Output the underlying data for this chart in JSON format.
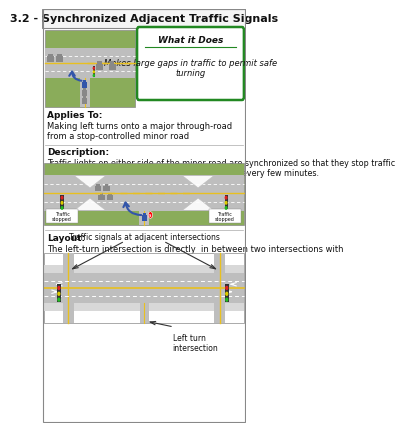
{
  "title": "3.2 - Synchronized Adjacent Traffic Signals",
  "what_it_does_title": "What it Does",
  "what_it_does_body": "Makes large gaps in traffic to permit safe\nturning",
  "applies_to_label": "Applies To:",
  "applies_to_body": "Making left turns onto a major through-road\nfrom a stop-controlled minor road",
  "description_label": "Description:",
  "description_body": "Traffic lights on either side of the minor road are synchronized so that they stop traffic\nand create large gaps suitable for making turns every few minutes.",
  "layout_label": "Layout:",
  "layout_body": "The left-turn intersection is directly  in between two intersections with\nsynchronized signals",
  "annotation_signals": "Traffic signals at adjacent intersections",
  "annotation_left_turn": "Left turn\nintersection",
  "bg_color": "#ffffff",
  "green_bg": "#8aac5a",
  "road_gray": "#bebebe",
  "road_edge": "#aaaaaa",
  "yellow_line": "#e8c020",
  "white": "#ffffff",
  "green_border": "#228822",
  "tl_body": "#333333",
  "tl_red": "#dd2222",
  "tl_yellow": "#ddcc00",
  "tl_green": "#22bb22",
  "car_blue": "#3355aa",
  "car_gray": "#888888",
  "annotation_color": "#333333",
  "text_dark": "#111111",
  "divider": "#aaaaaa",
  "title_bg": "#f5f5f5",
  "border_color": "#888888"
}
